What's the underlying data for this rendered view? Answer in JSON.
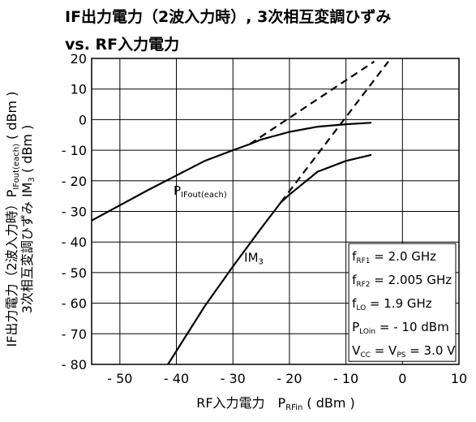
{
  "chart_data": {
    "type": "line",
    "title": [
      "IF出力電力（2波入力時）, 3次相互変調ひずみ",
      "vs. RF入力電力"
    ],
    "xlabel": {
      "main": "RF入力電力",
      "sym": "P",
      "sub": "RFin",
      "unit": "( dBm )"
    },
    "ylabel": {
      "line1": {
        "main": "IF出力電力（2波入力時）P",
        "sub": "IFout(each)",
        "unit": "( dBm )"
      },
      "line2": {
        "main": "3次相互変調ひずみ IM",
        "sub": "3",
        "unit": "( dBm )"
      }
    },
    "xlim": [
      -55,
      10
    ],
    "ylim": [
      -80,
      20
    ],
    "xticks": [
      -50,
      -40,
      -30,
      -20,
      -10,
      0,
      10
    ],
    "xtick_labels": [
      "- 50",
      "- 40",
      "- 30",
      "- 20",
      "- 10",
      "0",
      "10"
    ],
    "yticks": [
      20,
      10,
      0,
      -10,
      -20,
      -30,
      -40,
      -50,
      -60,
      -70,
      -80
    ],
    "ytick_labels": [
      "20",
      "10",
      "0",
      "- 10",
      "- 20",
      "- 30",
      "- 40",
      "- 50",
      "- 60",
      "- 70",
      "- 80"
    ],
    "grid": true,
    "series": [
      {
        "name": "P_IFout(each)",
        "style": "solid",
        "points": [
          [
            -55,
            -33
          ],
          [
            -45,
            -23
          ],
          [
            -35,
            -13.5
          ],
          [
            -30,
            -10
          ],
          [
            -27,
            -8
          ],
          [
            -25,
            -6.5
          ],
          [
            -20,
            -4
          ],
          [
            -15,
            -2.3
          ],
          [
            -10,
            -1.5
          ],
          [
            -5.5,
            -1
          ]
        ]
      },
      {
        "name": "P_IFout extrapolated",
        "style": "dashed",
        "points": [
          [
            -27,
            -8
          ],
          [
            -5,
            19
          ]
        ]
      },
      {
        "name": "IM3",
        "style": "solid",
        "points": [
          [
            -41.5,
            -80
          ],
          [
            -35,
            -61
          ],
          [
            -30,
            -48
          ],
          [
            -25,
            -35.5
          ],
          [
            -21.5,
            -27
          ],
          [
            -20,
            -24.5
          ],
          [
            -15,
            -17
          ],
          [
            -10,
            -13.5
          ],
          [
            -5.5,
            -11.5
          ]
        ]
      },
      {
        "name": "IM3 extrapolated",
        "style": "dashed",
        "points": [
          [
            -21.5,
            -27
          ],
          [
            -2.5,
            19
          ]
        ]
      }
    ],
    "annotations": [
      {
        "main": "P",
        "sub": "IFout(each)",
        "x": -40.5,
        "y": -23
      },
      {
        "main": "IM",
        "sub": "3",
        "x": -28,
        "y": -44.8
      }
    ],
    "conditions": [
      {
        "p": "f",
        "s": "RF1",
        "t": " = 2.0 GHz"
      },
      {
        "p": "f",
        "s": "RF2",
        "t": " = 2.005 GHz"
      },
      {
        "p": "f",
        "s": "LO",
        "t": " = 1.9 GHz"
      },
      {
        "p": "P",
        "s": "LOin",
        "t": " = - 10 dBm"
      },
      {
        "p": "V",
        "s": "CC",
        "t": " = V",
        "s2": "PS",
        "t2": " = 3.0 V"
      }
    ],
    "colors": {
      "line": "#000000",
      "grid": "#000000",
      "background": "#ffffff"
    }
  }
}
